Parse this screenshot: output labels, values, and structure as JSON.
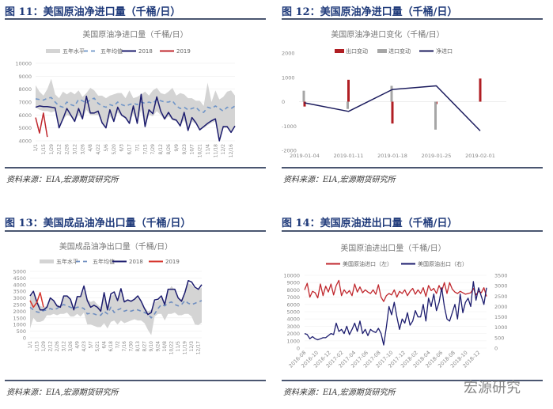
{
  "figures": [
    {
      "heading": "图 11：美国原油净进口量（千桶/日）",
      "source": "资料来源：EIA,宏源期货研究所"
    },
    {
      "heading": "图 12：美国原油净进口量（千桶/日）",
      "source": "资料来源：EIA,宏源期货研究所"
    },
    {
      "heading": "图 13：美国成品油净出口量（千桶/日）",
      "source": "资料来源：EIA,宏源期货研究所"
    },
    {
      "heading": "图 14：美国原油进出口量（千桶/日）",
      "source": "资料来源：EIA,宏源期货研究所"
    }
  ],
  "watermark": "宏源研究",
  "chart_data": [
    {
      "type": "line",
      "title": "美国原油净进口量（千桶/日）",
      "grid": true,
      "legend": "top",
      "ylim": [
        4000,
        10000
      ],
      "yticks": [
        4000,
        5000,
        6000,
        7000,
        8000,
        9000,
        10000
      ],
      "xticks": [
        "1/1",
        "1/15",
        "1/29",
        "2/12",
        "2/26",
        "3/12",
        "3/26",
        "4/8",
        "4/22",
        "5/6",
        "5/20",
        "6/3",
        "6/17",
        "7/1",
        "7/15",
        "7/29",
        "8/12",
        "8/26",
        "9/9",
        "9/23",
        "10/7",
        "10/21",
        "11/4",
        "11/18",
        "12/2",
        "12/16"
      ],
      "colors": {
        "band": "#d4d4d4",
        "avg": "#6f95c8",
        "2018": "#1c1c6e",
        "2019": "#c0272d"
      },
      "series": [
        {
          "name": "五年水平",
          "kind": "band",
          "upper": [
            8300,
            7800,
            7500,
            8000,
            8800,
            7600,
            7300,
            7800,
            7600,
            7800,
            7600,
            7900,
            7400,
            7700,
            8100,
            7900,
            7500,
            7500,
            7300,
            7500,
            7600,
            7700,
            7700,
            7300,
            7900,
            7300,
            7400,
            7600,
            7800,
            7500,
            7900,
            8100,
            7700,
            7600,
            7800,
            8100,
            7500,
            7700,
            7600,
            7300,
            7300,
            7100,
            7100,
            6700,
            8500,
            7000,
            7900,
            7200,
            7400,
            7800,
            7900,
            7500
          ],
          "lower": [
            6600,
            6400,
            6300,
            6300,
            6200,
            6300,
            5000,
            5600,
            6000,
            5900,
            5500,
            6000,
            5700,
            6400,
            6000,
            6000,
            6000,
            5400,
            5000,
            5900,
            5500,
            6200,
            5900,
            5700,
            5400,
            6100,
            5400,
            6400,
            5100,
            6000,
            5900,
            6300,
            6000,
            5600,
            5900,
            5600,
            5500,
            5200,
            5600,
            4800,
            5500,
            5300,
            4850,
            5000,
            5200,
            5400,
            5500,
            4000,
            5000,
            5000,
            4650,
            5150
          ]
        },
        {
          "name": "五年均值",
          "kind": "dash",
          "values": [
            7250,
            7200,
            7150,
            7300,
            7350,
            7000,
            6700,
            6600,
            7000,
            6800,
            6700,
            7200,
            7100,
            6900,
            7200,
            7300,
            6900,
            6700,
            6600,
            6800,
            6700,
            7000,
            6800,
            6700,
            6800,
            6900,
            6800,
            7000,
            6900,
            7000,
            6900,
            7200,
            7100,
            7000,
            7000,
            7100,
            6700,
            6500,
            6600,
            6400,
            6500,
            6600,
            6300,
            6200,
            6600,
            6500,
            6700,
            6500,
            6300,
            6600,
            6500,
            6700
          ]
        },
        {
          "name": "2018",
          "kind": "line",
          "values": [
            6600,
            6700,
            6650,
            6650,
            6600,
            6550,
            5000,
            5700,
            6500,
            6000,
            5500,
            6500,
            5700,
            7450,
            6150,
            6150,
            6300,
            5400,
            5000,
            6400,
            5500,
            6600,
            6000,
            5800,
            5350,
            6700,
            5350,
            7600,
            5100,
            6400,
            6100,
            7400,
            6300,
            5700,
            6200,
            5700,
            5600,
            5150,
            6200,
            4800,
            5800,
            5400,
            4850,
            5100,
            5350,
            5550,
            5700,
            4000,
            5100,
            5100,
            4650,
            5150
          ]
        },
        {
          "name": "2019",
          "kind": "line",
          "values": [
            5800,
            4600,
            6150,
            4300
          ]
        }
      ]
    },
    {
      "type": "bar",
      "title": "美国原油净进口变化（千桶/日）",
      "grid": true,
      "legend": "top",
      "ylim": [
        -2000,
        2000
      ],
      "yticks": [
        -2000,
        -1000,
        0,
        1000,
        2000
      ],
      "categories": [
        "2019-01-04",
        "2019-01-11",
        "2019-01-18",
        "2019-01-25",
        "2019-02-01"
      ],
      "colors": {
        "出口变动": "#b01e23",
        "进口变动": "#a6a6a6",
        "净进口": "#1c1c5e"
      },
      "series": [
        {
          "name": "出口变动",
          "kind": "bar",
          "values": [
            -200,
            900,
            -900,
            -100,
            950
          ]
        },
        {
          "name": "进口变动",
          "kind": "bar",
          "values": [
            450,
            -300,
            650,
            -1150,
            0
          ]
        },
        {
          "name": "净进口",
          "kind": "line",
          "values": [
            -50,
            -400,
            500,
            650,
            -1200
          ]
        }
      ]
    },
    {
      "type": "line",
      "title": "美国成品油净出口量（千桶/日）",
      "grid": true,
      "legend": "top",
      "ylim": [
        0,
        5000
      ],
      "yticks": [
        0,
        500,
        1000,
        1500,
        2000,
        2500,
        3000,
        3500,
        4000,
        4500,
        5000
      ],
      "xticks": [
        "1/1",
        "1/15",
        "1/29",
        "2/12",
        "2/26",
        "3/12",
        "3/26",
        "4/9",
        "4/23",
        "5/7",
        "5/21",
        "6/4",
        "6/18",
        "7/2",
        "7/16",
        "7/30",
        "8/13",
        "8/27",
        "9/10",
        "9/24",
        "10/8",
        "10/22",
        "11/5",
        "11/19",
        "12/3",
        "12/17"
      ],
      "colors": {
        "band": "#d4d4d4",
        "avg": "#6f8ec0",
        "2018": "#1c1c6e",
        "2019": "#d6332b"
      },
      "series": [
        {
          "name": "五年水平",
          "kind": "band",
          "upper": [
            3100,
            3300,
            2900,
            2400,
            2300,
            2400,
            2900,
            2800,
            2500,
            2400,
            3100,
            3100,
            2900,
            2300,
            3100,
            3100,
            3600,
            2900,
            2700,
            2800,
            2500,
            2300,
            3100,
            2400,
            3100,
            3300,
            2900,
            3400,
            2800,
            2900,
            2800,
            2900,
            3000,
            2700,
            2300,
            2000,
            2100,
            2700,
            2800,
            3000,
            2600,
            3500,
            3900,
            3600,
            3000,
            2900,
            3500,
            4100,
            4000,
            3700,
            3600,
            3800
          ],
          "lower": [
            700,
            1500,
            1200,
            1200,
            1300,
            1700,
            1700,
            1800,
            1700,
            1800,
            1800,
            1900,
            1600,
            1600,
            1800,
            1600,
            1900,
            1000,
            1000,
            900,
            800,
            800,
            1100,
            700,
            1200,
            1300,
            1000,
            1300,
            1100,
            1200,
            1300,
            1400,
            1300,
            1300,
            1100,
            600,
            200,
            1600,
            1800,
            1800,
            1300,
            1800,
            1800,
            1900,
            1700,
            1700,
            1800,
            1800,
            1600,
            1000,
            950,
            1150
          ]
        },
        {
          "name": "五年均值",
          "kind": "dash",
          "values": [
            2300,
            2100,
            1950,
            1900,
            2050,
            2100,
            2200,
            2100,
            2200,
            2400,
            2500,
            2400,
            2300,
            2200,
            2300,
            2300,
            2200,
            1800,
            1850,
            1800,
            1700,
            1700,
            2000,
            1800,
            2300,
            1900,
            2100,
            2200,
            2000,
            2100,
            2000,
            2100,
            2100,
            2000,
            1900,
            1800,
            1500,
            1800,
            2200,
            2500,
            2400,
            2600,
            2700,
            2500,
            2400,
            2500,
            2800,
            2600,
            2500,
            2600,
            2700,
            2800
          ]
        },
        {
          "name": "2018",
          "kind": "line",
          "values": [
            3150,
            3500,
            2700,
            2100,
            2100,
            2300,
            3000,
            2800,
            2400,
            2300,
            3150,
            3150,
            2900,
            2100,
            3100,
            3100,
            3900,
            2800,
            2300,
            2450,
            2300,
            2000,
            3400,
            2100,
            3300,
            3450,
            2800,
            3700,
            2700,
            2850,
            2750,
            2900,
            3150,
            2750,
            2200,
            1750,
            1900,
            2850,
            2900,
            3150,
            2500,
            3650,
            3650,
            3650,
            3000,
            2750,
            3400,
            4300,
            4200,
            3800,
            3650,
            4000
          ]
        },
        {
          "name": "2019",
          "kind": "line",
          "values": [
            2800,
            2300,
            2650,
            3400,
            2300
          ]
        }
      ]
    },
    {
      "type": "line",
      "title": "美国原油进出口量（千桶/日）",
      "grid": true,
      "legend": "top",
      "ylim": [
        0,
        10000
      ],
      "y2lim": [
        0,
        3500
      ],
      "yticks": [
        0,
        1000,
        2000,
        3000,
        4000,
        5000,
        6000,
        7000,
        8000,
        9000,
        10000
      ],
      "y2ticks": [
        0,
        500,
        1000,
        1500,
        2000,
        2500,
        3000,
        3500
      ],
      "xticks": [
        "2016-08",
        "2016-10",
        "2016-12",
        "2017-02",
        "2017-04",
        "2017-06",
        "2017-08",
        "2017-10",
        "2017-12",
        "2018-02",
        "2018-04",
        "2018-06",
        "2018-08",
        "2018-10",
        "2018-12"
      ],
      "colors": {
        "import": "#c0272d",
        "export": "#1c1c6e"
      },
      "series": [
        {
          "name": "美国原油进口（左）",
          "axis": "left",
          "values": [
            8000,
            8900,
            7000,
            7800,
            7600,
            6900,
            8800,
            7200,
            8500,
            7700,
            8800,
            7300,
            8600,
            9300,
            7200,
            8000,
            7500,
            7900,
            7200,
            8800,
            7700,
            8400,
            7600,
            8000,
            7700,
            7500,
            8000,
            7400,
            8700,
            7000,
            6400,
            7200,
            7500,
            7300,
            8000,
            7000,
            7800,
            7500,
            8000,
            7200,
            7800,
            8200,
            7400,
            8000,
            7500,
            8300,
            7100,
            8600,
            7900,
            8200,
            7500,
            8600,
            7800,
            9000,
            7500,
            9000,
            8100,
            7700,
            7500,
            7800,
            7600,
            7400,
            7500,
            7600,
            8200,
            7300,
            7800,
            7600,
            8300,
            7100
          ]
        },
        {
          "name": "美国原油出口（右）",
          "axis": "right",
          "values": [
            700,
            650,
            450,
            550,
            450,
            400,
            450,
            500,
            500,
            600,
            700,
            650,
            1200,
            800,
            900,
            700,
            1050,
            650,
            900,
            1200,
            800,
            1300,
            700,
            900,
            600,
            900,
            800,
            750,
            950,
            700,
            150,
            1000,
            2000,
            1600,
            2200,
            1500,
            900,
            1400,
            1200,
            1700,
            1100,
            1300,
            1800,
            1500,
            1500,
            2100,
            1300,
            2400,
            2000,
            2600,
            1800,
            2200,
            2900,
            2000,
            1400,
            1300,
            1700,
            2100,
            1400,
            2600,
            1700,
            2200,
            2400,
            2000,
            3200,
            2300,
            2900,
            2500,
            2100,
            2900
          ]
        }
      ]
    }
  ]
}
